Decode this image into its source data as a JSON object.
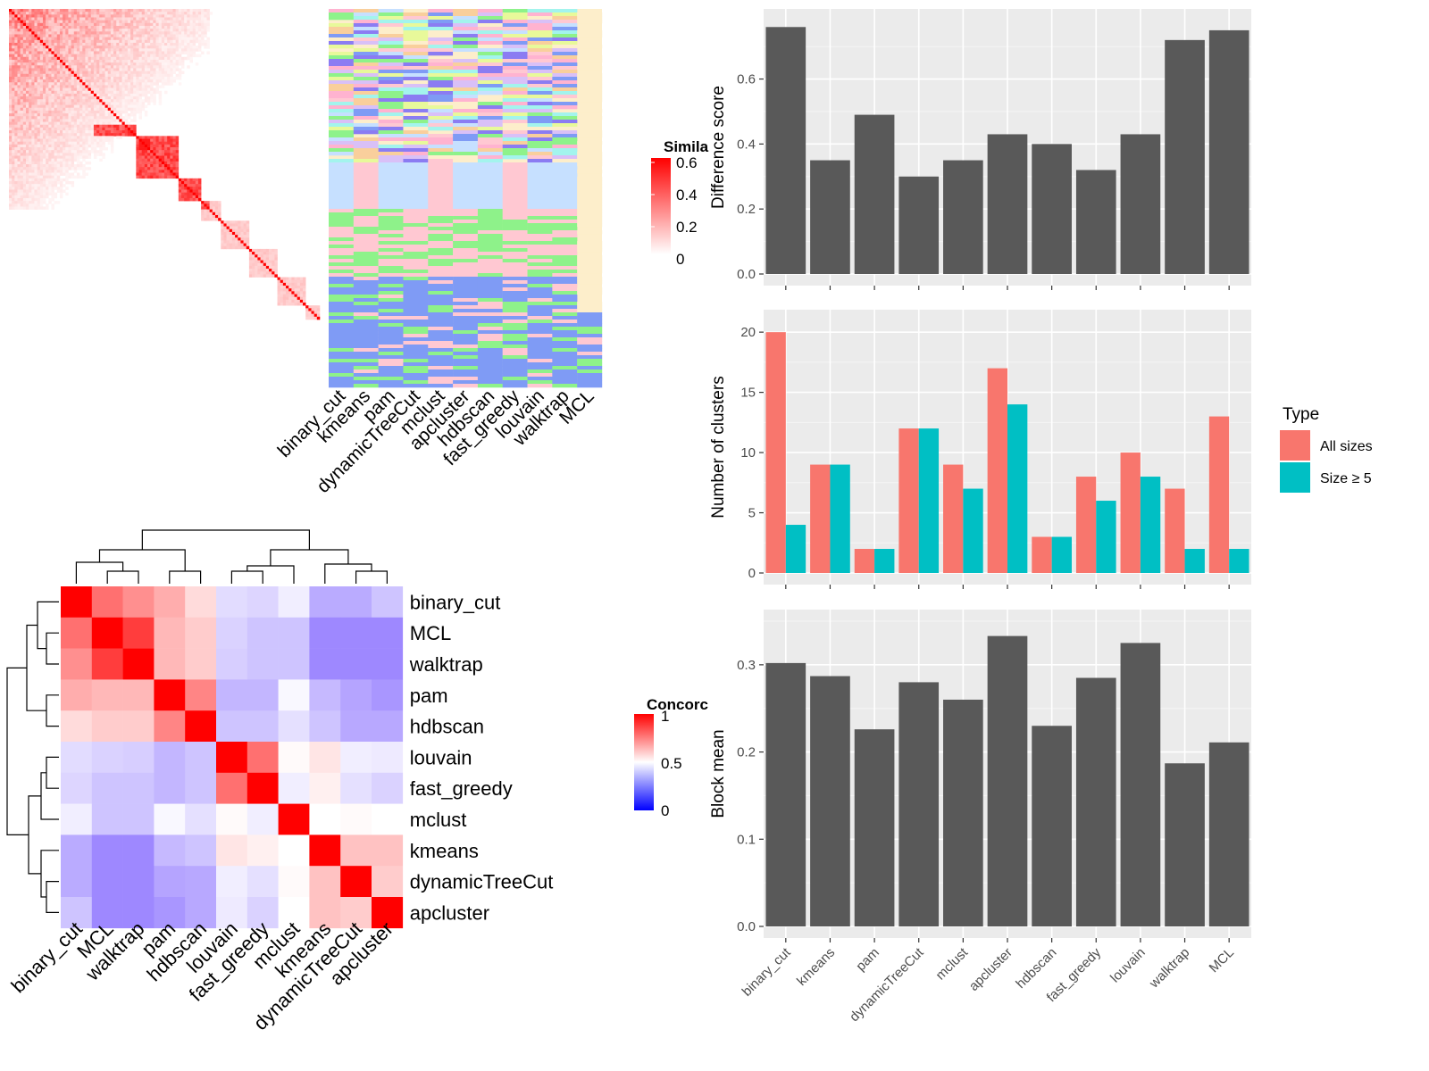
{
  "chart_data": [
    {
      "type": "heatmap",
      "id": "similarity_heatmap",
      "legend_title": "Similarity",
      "legend_title_visible": "Simila",
      "legend_ticks": [
        "0.6",
        "0.4",
        "0.2",
        "0"
      ],
      "colors": {
        "low": "#ffffff",
        "high": "#ff0000"
      }
    },
    {
      "type": "heatmap",
      "id": "cluster_assignments",
      "columns": [
        "binary_cut",
        "kmeans",
        "pam",
        "dynamicTreeCut",
        "mclust",
        "apcluster",
        "hdbscan",
        "fast_greedy",
        "louvain",
        "walktrap",
        "MCL"
      ]
    },
    {
      "type": "heatmap",
      "id": "concordance_heatmap",
      "legend_title": "Concordance",
      "legend_title_visible": "Concorc",
      "legend_ticks": [
        "1",
        "0.5",
        "0"
      ],
      "colors": {
        "low": "#0000ff",
        "mid": "#ffffff",
        "high": "#ff0000"
      },
      "methods": [
        "binary_cut",
        "MCL",
        "walktrap",
        "pam",
        "hdbscan",
        "louvain",
        "fast_greedy",
        "mclust",
        "kmeans",
        "dynamicTreeCut",
        "apcluster"
      ],
      "matrix": [
        [
          1.0,
          0.78,
          0.72,
          0.66,
          0.57,
          0.4,
          0.38,
          0.45,
          0.26,
          0.26,
          0.33
        ],
        [
          0.78,
          1.0,
          0.88,
          0.64,
          0.6,
          0.37,
          0.33,
          0.33,
          0.16,
          0.16,
          0.16
        ],
        [
          0.72,
          0.88,
          1.0,
          0.64,
          0.6,
          0.36,
          0.33,
          0.33,
          0.16,
          0.16,
          0.16
        ],
        [
          0.66,
          0.64,
          0.64,
          1.0,
          0.74,
          0.29,
          0.29,
          0.48,
          0.3,
          0.24,
          0.2
        ],
        [
          0.57,
          0.6,
          0.6,
          0.74,
          1.0,
          0.33,
          0.33,
          0.41,
          0.33,
          0.25,
          0.25
        ],
        [
          0.4,
          0.37,
          0.36,
          0.29,
          0.33,
          1.0,
          0.78,
          0.51,
          0.55,
          0.45,
          0.44
        ],
        [
          0.38,
          0.33,
          0.33,
          0.29,
          0.33,
          0.78,
          1.0,
          0.45,
          0.53,
          0.41,
          0.37
        ],
        [
          0.45,
          0.33,
          0.33,
          0.48,
          0.41,
          0.51,
          0.45,
          1.0,
          0.5,
          0.51,
          0.5
        ],
        [
          0.26,
          0.16,
          0.16,
          0.3,
          0.33,
          0.55,
          0.53,
          0.5,
          1.0,
          0.62,
          0.62
        ],
        [
          0.26,
          0.16,
          0.16,
          0.24,
          0.25,
          0.45,
          0.41,
          0.51,
          0.62,
          1.0,
          0.6
        ],
        [
          0.33,
          0.16,
          0.16,
          0.2,
          0.25,
          0.44,
          0.37,
          0.5,
          0.62,
          0.6,
          1.0
        ]
      ]
    },
    {
      "type": "bar",
      "id": "difference_score",
      "ylabel": "Difference score",
      "categories": [
        "binary_cut",
        "kmeans",
        "pam",
        "dynamicTreeCut",
        "mclust",
        "apcluster",
        "hdbscan",
        "fast_greedy",
        "louvain",
        "walktrap",
        "MCL"
      ],
      "values": [
        0.76,
        0.35,
        0.49,
        0.3,
        0.35,
        0.43,
        0.4,
        0.32,
        0.43,
        0.72,
        0.75
      ],
      "ylim": [
        0,
        0.78
      ],
      "yticks": [
        "0.0",
        "0.2",
        "0.4",
        "0.6"
      ],
      "color": "#595959"
    },
    {
      "type": "bar",
      "id": "number_of_clusters",
      "ylabel": "Number of clusters",
      "categories": [
        "binary_cut",
        "kmeans",
        "pam",
        "dynamicTreeCut",
        "mclust",
        "apcluster",
        "hdbscan",
        "fast_greedy",
        "louvain",
        "walktrap",
        "MCL"
      ],
      "series": [
        {
          "name": "All sizes",
          "values": [
            20,
            9,
            2,
            12,
            9,
            17,
            3,
            8,
            10,
            7,
            13
          ],
          "color": "#f8766d"
        },
        {
          "name": "Size ≥ 5",
          "values": [
            4,
            9,
            2,
            12,
            7,
            14,
            3,
            6,
            8,
            2,
            2
          ],
          "color": "#00bfc4"
        }
      ],
      "legend_title": "Type",
      "legend_position": "right",
      "ylim": [
        0,
        20.9
      ],
      "yticks": [
        "0",
        "5",
        "10",
        "15",
        "20"
      ]
    },
    {
      "type": "bar",
      "id": "block_mean",
      "ylabel": "Block mean",
      "categories": [
        "binary_cut",
        "kmeans",
        "pam",
        "dynamicTreeCut",
        "mclust",
        "apcluster",
        "hdbscan",
        "fast_greedy",
        "louvain",
        "walktrap",
        "MCL"
      ],
      "values": [
        0.302,
        0.287,
        0.226,
        0.28,
        0.26,
        0.333,
        0.23,
        0.285,
        0.325,
        0.187,
        0.211
      ],
      "ylim": [
        0,
        0.35
      ],
      "yticks": [
        "0.0",
        "0.1",
        "0.2",
        "0.3"
      ],
      "color": "#595959"
    }
  ]
}
